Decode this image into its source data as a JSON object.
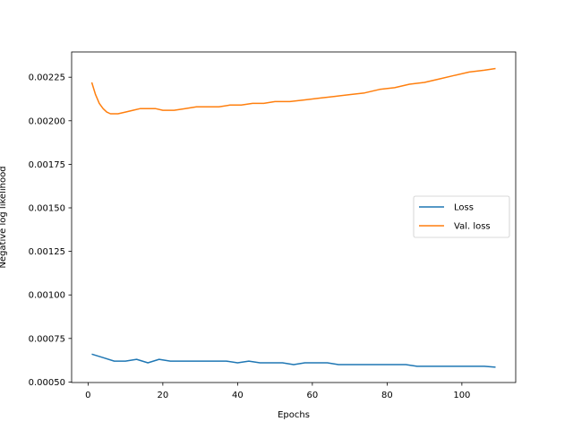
{
  "chart_data": {
    "type": "line",
    "xlabel": "Epochs",
    "ylabel": "Negative log likelihood",
    "xlim": [
      -4.4,
      114.4
    ],
    "ylim": [
      0.000497,
      0.002395
    ],
    "xticks": [
      0,
      20,
      40,
      60,
      80,
      100
    ],
    "yticks": [
      0.0005,
      0.00075,
      0.001,
      0.00125,
      0.0015,
      0.00175,
      0.002,
      0.00225
    ],
    "ytick_labels": [
      "0.00050",
      "0.00075",
      "0.00100",
      "0.00125",
      "0.00150",
      "0.00175",
      "0.00200",
      "0.00225"
    ],
    "grid": false,
    "legend_position": "center-right",
    "colors": {
      "loss": "#1f77b4",
      "val_loss": "#ff7f0e"
    },
    "series": [
      {
        "name": "Loss",
        "color": "#1f77b4",
        "x": [
          1,
          4,
          7,
          10,
          13,
          16,
          19,
          22,
          25,
          28,
          31,
          34,
          37,
          40,
          43,
          46,
          49,
          52,
          55,
          58,
          61,
          64,
          67,
          70,
          73,
          76,
          79,
          82,
          85,
          88,
          91,
          94,
          97,
          100,
          103,
          106,
          109
        ],
        "y": [
          0.00066,
          0.00064,
          0.00062,
          0.00062,
          0.00063,
          0.00061,
          0.00063,
          0.00062,
          0.00062,
          0.00062,
          0.00062,
          0.00062,
          0.00062,
          0.00061,
          0.00062,
          0.00061,
          0.00061,
          0.00061,
          0.0006,
          0.00061,
          0.00061,
          0.00061,
          0.0006,
          0.0006,
          0.0006,
          0.0006,
          0.0006,
          0.0006,
          0.0006,
          0.00059,
          0.00059,
          0.00059,
          0.00059,
          0.00059,
          0.00059,
          0.00059,
          0.000585
        ]
      },
      {
        "name": "Val. loss",
        "color": "#ff7f0e",
        "x": [
          1,
          2,
          3,
          4,
          5,
          6,
          8,
          10,
          12,
          14,
          16,
          18,
          20,
          23,
          26,
          29,
          32,
          35,
          38,
          41,
          44,
          47,
          50,
          54,
          58,
          62,
          66,
          70,
          74,
          78,
          82,
          86,
          90,
          94,
          98,
          102,
          106,
          109
        ],
        "y": [
          0.00222,
          0.00215,
          0.0021,
          0.00207,
          0.00205,
          0.00204,
          0.00204,
          0.00205,
          0.00206,
          0.00207,
          0.00207,
          0.00207,
          0.00206,
          0.00206,
          0.00207,
          0.00208,
          0.00208,
          0.00208,
          0.00209,
          0.00209,
          0.0021,
          0.0021,
          0.00211,
          0.00211,
          0.00212,
          0.00213,
          0.00214,
          0.00215,
          0.00216,
          0.00218,
          0.00219,
          0.00221,
          0.00222,
          0.00224,
          0.00226,
          0.00228,
          0.00229,
          0.0023
        ]
      }
    ]
  }
}
